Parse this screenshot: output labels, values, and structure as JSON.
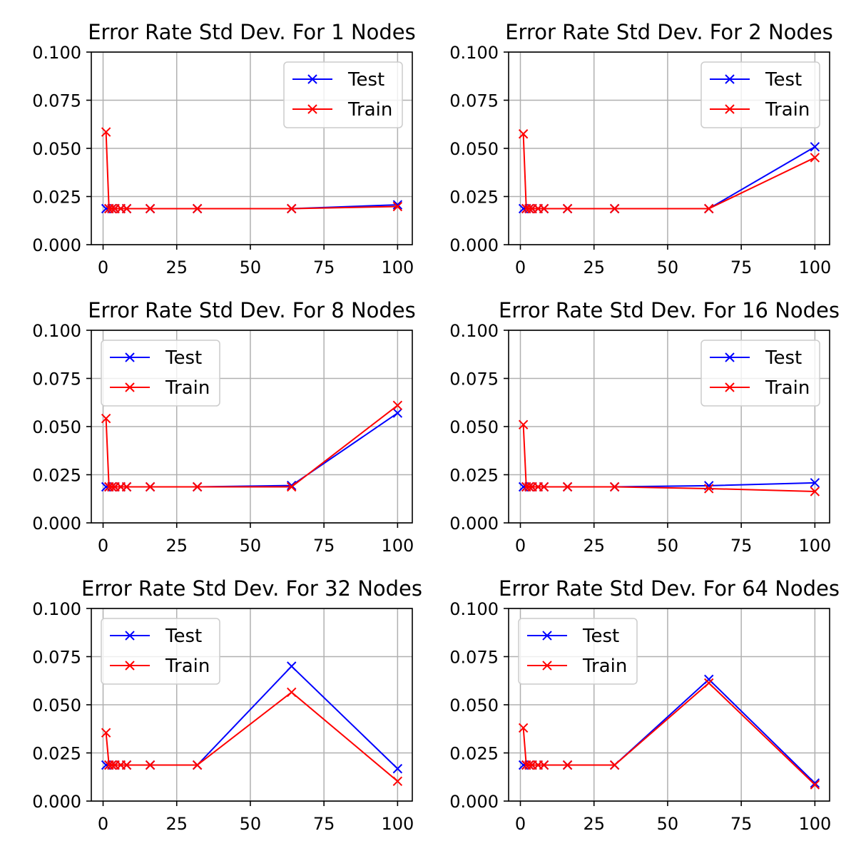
{
  "chart_data": [
    {
      "type": "line",
      "title": "Error Rate Std Dev. For 1 Nodes",
      "xlim": [
        -4,
        105
      ],
      "ylim": [
        0,
        0.1
      ],
      "xticks": [
        "0",
        "25",
        "50",
        "75",
        "100"
      ],
      "yticks": [
        "0.000",
        "0.025",
        "0.050",
        "0.075",
        "0.100"
      ],
      "grid": true,
      "legend_position": "upper right",
      "x": [
        1,
        2,
        3,
        4,
        6,
        8,
        16,
        32,
        64,
        100
      ],
      "series": [
        {
          "name": "Test",
          "color": "#0000ff",
          "values": [
            0.0187,
            0.0187,
            0.0187,
            0.0187,
            0.0187,
            0.0187,
            0.0187,
            0.0187,
            0.0187,
            0.0207
          ]
        },
        {
          "name": "Train",
          "color": "#ff0000",
          "values": [
            0.0585,
            0.0187,
            0.0187,
            0.0187,
            0.0187,
            0.0187,
            0.0187,
            0.0187,
            0.0187,
            0.0198
          ]
        }
      ]
    },
    {
      "type": "line",
      "title": "Error Rate Std Dev. For 2 Nodes",
      "xlim": [
        -4,
        105
      ],
      "ylim": [
        0,
        0.1
      ],
      "xticks": [
        "0",
        "25",
        "50",
        "75",
        "100"
      ],
      "yticks": [
        "0.000",
        "0.025",
        "0.050",
        "0.075",
        "0.100"
      ],
      "grid": true,
      "legend_position": "upper right",
      "x": [
        1,
        2,
        3,
        4,
        6,
        8,
        16,
        32,
        64,
        100
      ],
      "series": [
        {
          "name": "Test",
          "color": "#0000ff",
          "values": [
            0.0187,
            0.0187,
            0.0187,
            0.0187,
            0.0187,
            0.0187,
            0.0187,
            0.0187,
            0.0187,
            0.0508
          ]
        },
        {
          "name": "Train",
          "color": "#ff0000",
          "values": [
            0.0575,
            0.0187,
            0.0187,
            0.0187,
            0.0187,
            0.0187,
            0.0187,
            0.0187,
            0.0187,
            0.0452
          ]
        }
      ]
    },
    {
      "type": "line",
      "title": "Error Rate Std Dev. For 8 Nodes",
      "xlim": [
        -4,
        105
      ],
      "ylim": [
        0,
        0.1
      ],
      "xticks": [
        "0",
        "25",
        "50",
        "75",
        "100"
      ],
      "yticks": [
        "0.000",
        "0.025",
        "0.050",
        "0.075",
        "0.100"
      ],
      "grid": true,
      "legend_position": "upper left",
      "x": [
        1,
        2,
        3,
        4,
        6,
        8,
        16,
        32,
        64,
        100
      ],
      "series": [
        {
          "name": "Test",
          "color": "#0000ff",
          "values": [
            0.0187,
            0.0187,
            0.0187,
            0.0187,
            0.0187,
            0.0187,
            0.0187,
            0.0187,
            0.0194,
            0.057
          ]
        },
        {
          "name": "Train",
          "color": "#ff0000",
          "values": [
            0.0542,
            0.0187,
            0.0187,
            0.0187,
            0.0187,
            0.0187,
            0.0187,
            0.0187,
            0.0187,
            0.061
          ]
        }
      ]
    },
    {
      "type": "line",
      "title": "Error Rate Std Dev. For 16 Nodes",
      "xlim": [
        -4,
        105
      ],
      "ylim": [
        0,
        0.1
      ],
      "xticks": [
        "0",
        "25",
        "50",
        "75",
        "100"
      ],
      "yticks": [
        "0.000",
        "0.025",
        "0.050",
        "0.075",
        "0.100"
      ],
      "grid": true,
      "legend_position": "upper right",
      "x": [
        1,
        2,
        3,
        4,
        6,
        8,
        16,
        32,
        64,
        100
      ],
      "series": [
        {
          "name": "Test",
          "color": "#0000ff",
          "values": [
            0.0187,
            0.0187,
            0.0187,
            0.0187,
            0.0187,
            0.0187,
            0.0187,
            0.0187,
            0.0193,
            0.0208
          ]
        },
        {
          "name": "Train",
          "color": "#ff0000",
          "values": [
            0.051,
            0.0187,
            0.0187,
            0.0187,
            0.0187,
            0.0187,
            0.0187,
            0.0187,
            0.0178,
            0.0163
          ]
        }
      ]
    },
    {
      "type": "line",
      "title": "Error Rate Std Dev. For 32 Nodes",
      "xlim": [
        -4,
        105
      ],
      "ylim": [
        0,
        0.1
      ],
      "xticks": [
        "0",
        "25",
        "50",
        "75",
        "100"
      ],
      "yticks": [
        "0.000",
        "0.025",
        "0.050",
        "0.075",
        "0.100"
      ],
      "grid": true,
      "legend_position": "upper left",
      "x": [
        1,
        2,
        3,
        4,
        6,
        8,
        16,
        32,
        64,
        100
      ],
      "series": [
        {
          "name": "Test",
          "color": "#0000ff",
          "values": [
            0.0187,
            0.0187,
            0.0187,
            0.0187,
            0.0187,
            0.0187,
            0.0187,
            0.0187,
            0.07,
            0.0168
          ]
        },
        {
          "name": "Train",
          "color": "#ff0000",
          "values": [
            0.0355,
            0.0187,
            0.0187,
            0.0187,
            0.0187,
            0.0187,
            0.0187,
            0.0187,
            0.0565,
            0.0103
          ]
        }
      ]
    },
    {
      "type": "line",
      "title": "Error Rate Std Dev. For 64 Nodes",
      "xlim": [
        -4,
        105
      ],
      "ylim": [
        0,
        0.1
      ],
      "xticks": [
        "0",
        "25",
        "50",
        "75",
        "100"
      ],
      "yticks": [
        "0.000",
        "0.025",
        "0.050",
        "0.075",
        "0.100"
      ],
      "grid": true,
      "legend_position": "upper left",
      "x": [
        1,
        2,
        3,
        4,
        6,
        8,
        16,
        32,
        64,
        100
      ],
      "series": [
        {
          "name": "Test",
          "color": "#0000ff",
          "values": [
            0.0187,
            0.0187,
            0.0187,
            0.0187,
            0.0187,
            0.0187,
            0.0187,
            0.0187,
            0.0632,
            0.0093
          ]
        },
        {
          "name": "Train",
          "color": "#ff0000",
          "values": [
            0.038,
            0.0187,
            0.0187,
            0.0187,
            0.0187,
            0.0187,
            0.0187,
            0.0187,
            0.0613,
            0.0085
          ]
        }
      ]
    }
  ]
}
